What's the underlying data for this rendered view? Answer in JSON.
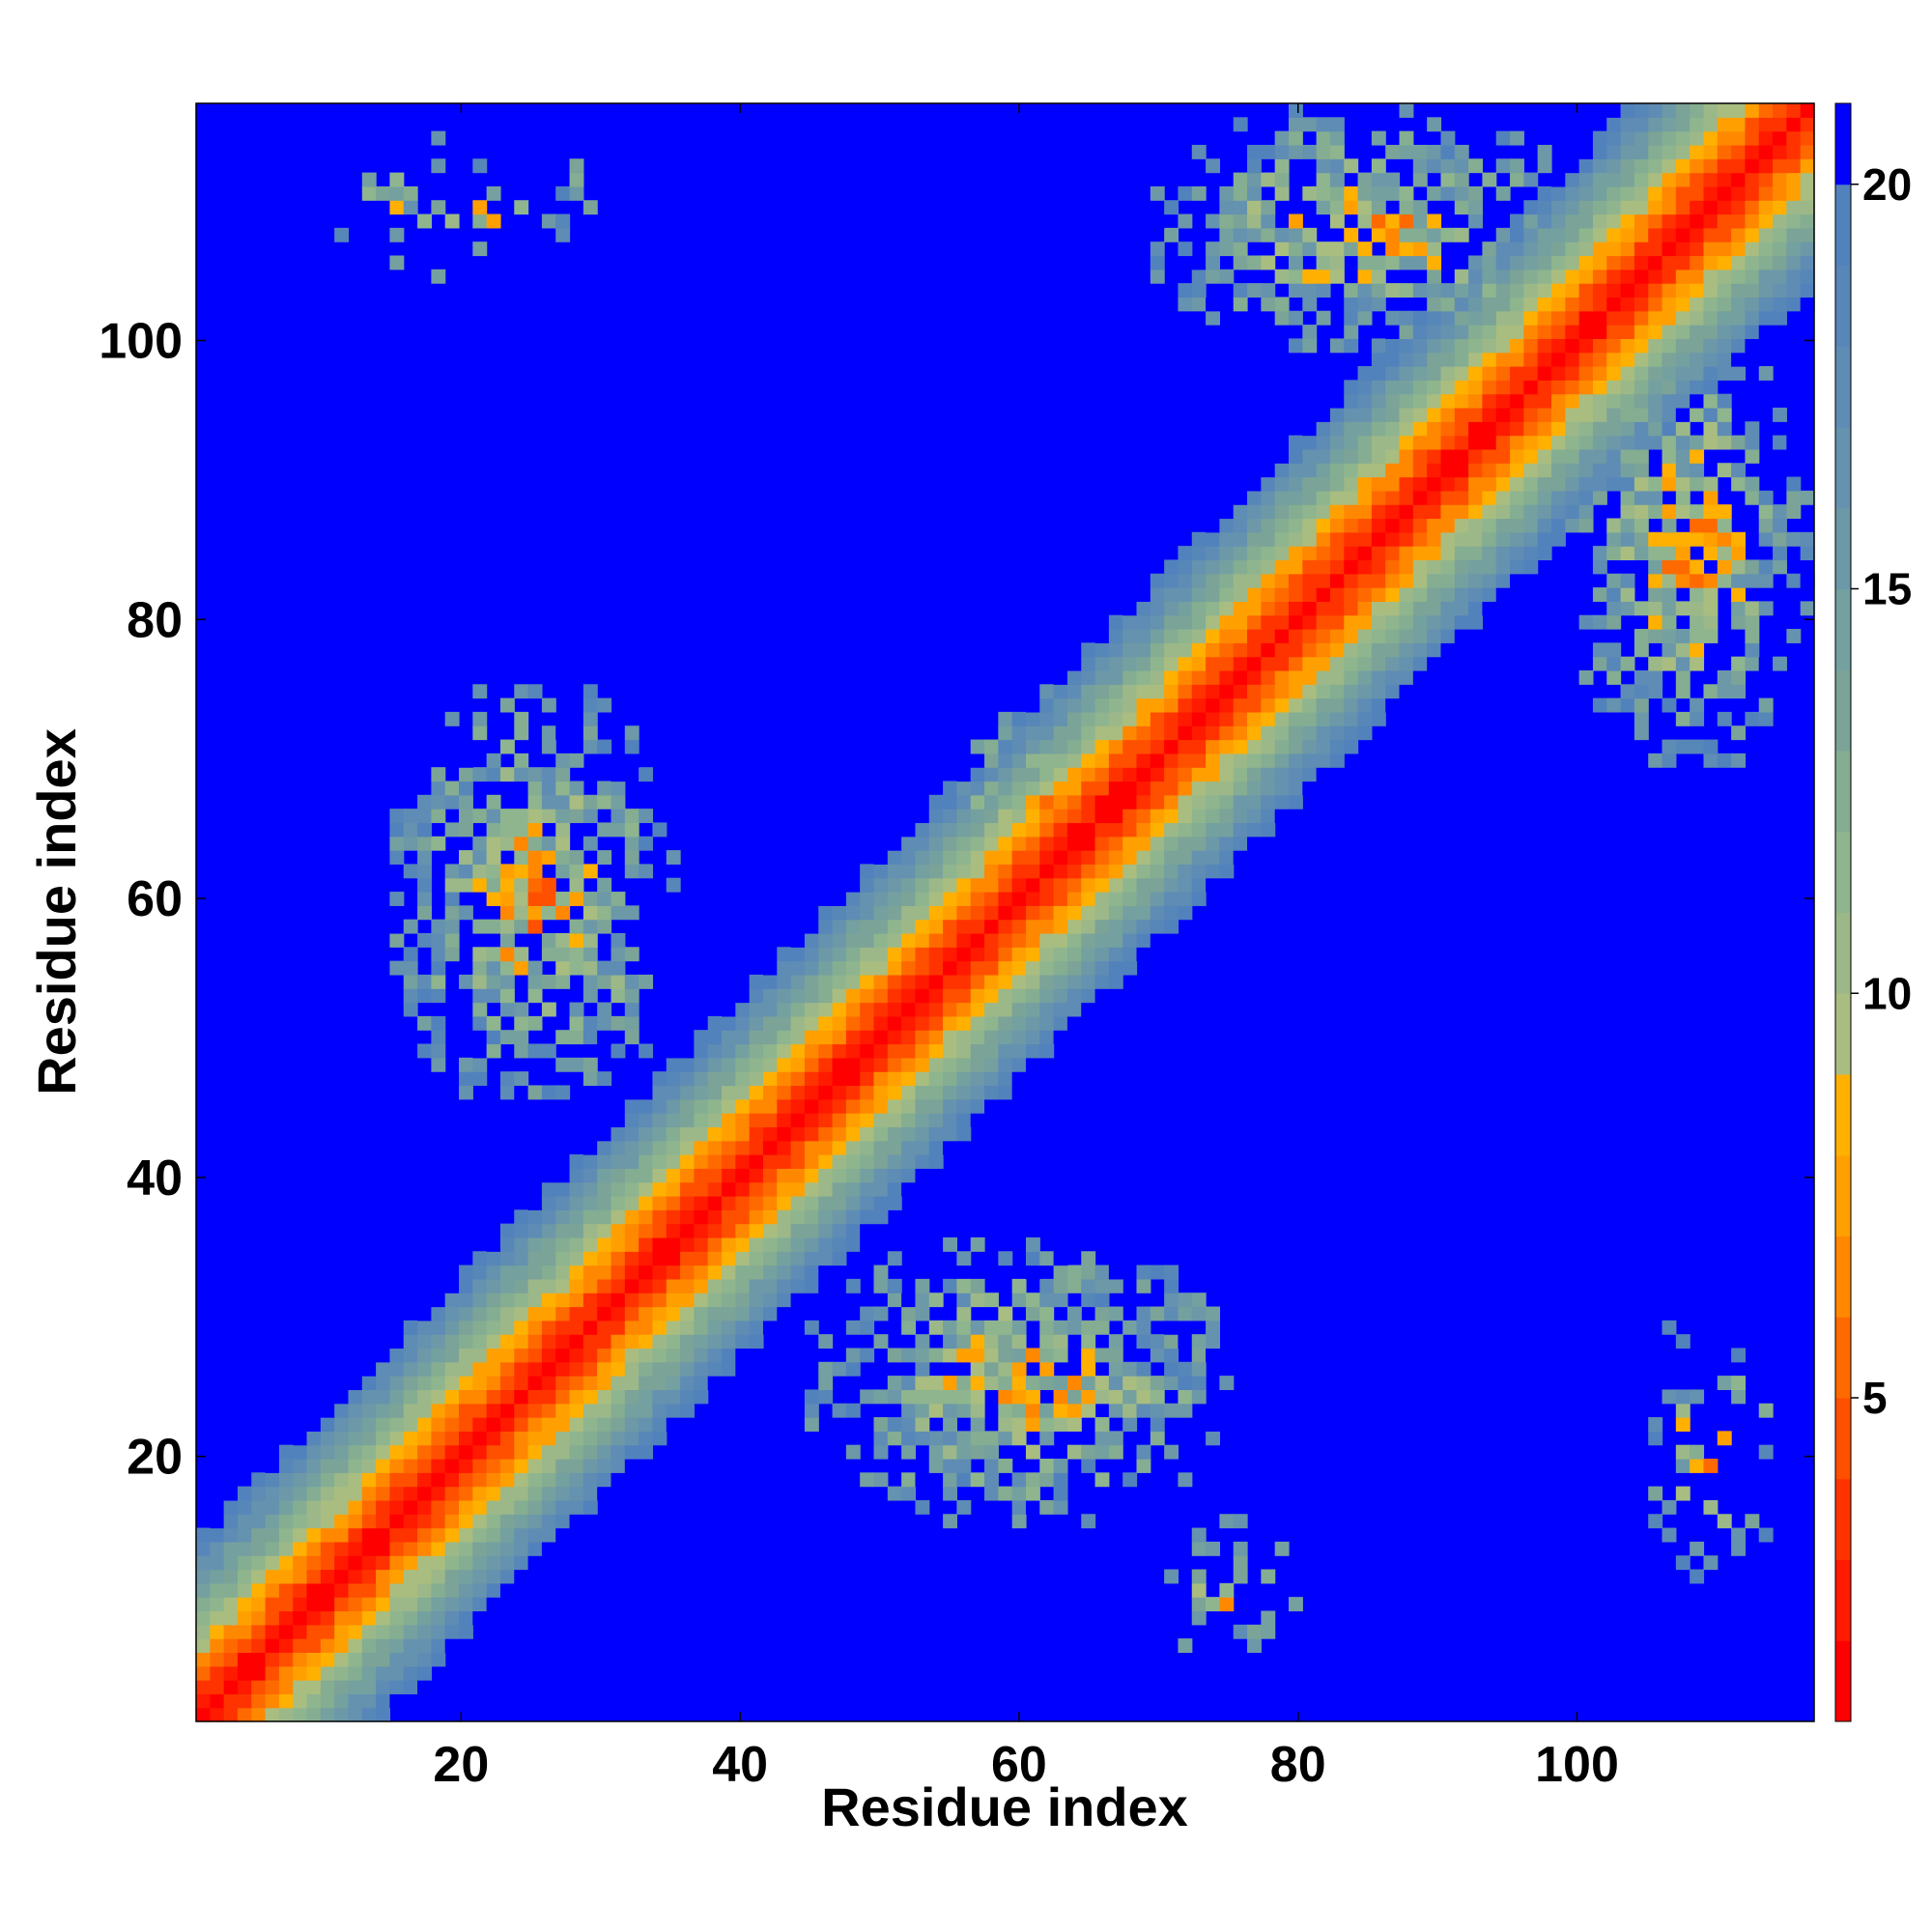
{
  "chart_data": {
    "type": "heatmap",
    "title": "",
    "xlabel": "Residue index",
    "ylabel": "Residue index",
    "n_residues": 117,
    "xlim": [
      1,
      117
    ],
    "ylim": [
      1,
      117
    ],
    "x_ticks": [
      20,
      40,
      60,
      80,
      100
    ],
    "y_ticks": [
      20,
      40,
      60,
      80,
      100
    ],
    "colorbar": {
      "range": [
        1,
        21
      ],
      "ticks": [
        5,
        10,
        15,
        20
      ],
      "levels": [
        {
          "upto": 2,
          "color": "#ff0000"
        },
        {
          "upto": 3,
          "color": "#ff1a00"
        },
        {
          "upto": 4,
          "color": "#ff3300"
        },
        {
          "upto": 5,
          "color": "#ff5000"
        },
        {
          "upto": 6,
          "color": "#ff6a00"
        },
        {
          "upto": 7,
          "color": "#ff8800"
        },
        {
          "upto": 8,
          "color": "#ffa000"
        },
        {
          "upto": 9,
          "color": "#ffb000"
        },
        {
          "upto": 10,
          "color": "#a9bd80"
        },
        {
          "upto": 11,
          "color": "#9cb888"
        },
        {
          "upto": 12,
          "color": "#8fb58e"
        },
        {
          "upto": 13,
          "color": "#84ad92"
        },
        {
          "upto": 14,
          "color": "#7ba398"
        },
        {
          "upto": 15,
          "color": "#74a0a0"
        },
        {
          "upto": 16,
          "color": "#6c98a8"
        },
        {
          "upto": 17,
          "color": "#6592ae"
        },
        {
          "upto": 18,
          "color": "#5e8cb4"
        },
        {
          "upto": 19,
          "color": "#5786b8"
        },
        {
          "upto": 20,
          "color": "#5282bc"
        },
        {
          "upto": 21,
          "color": "#0000ff"
        }
      ]
    },
    "matrix_description": "Symmetric residue-residue distance map: near-zero distances along the diagonal, distances capped at about 21 elsewhere",
    "contact_blocks": [
      {
        "x": [
          15,
          35
        ],
        "y": [
          45,
          75
        ],
        "strength": 0.8
      },
      {
        "x": [
          45,
          75
        ],
        "y": [
          15,
          35
        ],
        "strength": 0.8
      },
      {
        "x": [
          70,
          100
        ],
        "y": [
          100,
          117
        ],
        "strength": 0.8
      },
      {
        "x": [
          100,
          117
        ],
        "y": [
          70,
          100
        ],
        "strength": 0.8
      },
      {
        "x": [
          10,
          30
        ],
        "y": [
          105,
          115
        ],
        "strength": 0.3
      },
      {
        "x": [
          70,
          80
        ],
        "y": [
          5,
          15
        ],
        "strength": 0.3
      },
      {
        "x": [
          105,
          115
        ],
        "y": [
          10,
          30
        ],
        "strength": 0.3
      },
      {
        "x": [
          55,
          70
        ],
        "y": [
          55,
          75
        ],
        "strength": 0.5
      }
    ]
  }
}
